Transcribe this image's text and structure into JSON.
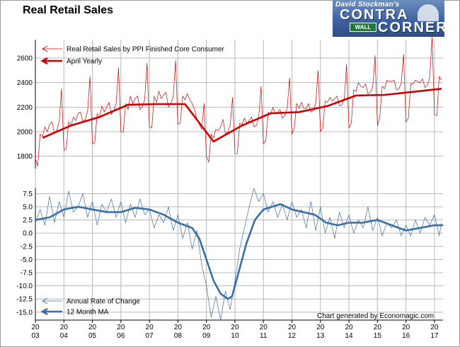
{
  "chart": {
    "title": "Real Retail Sales",
    "credit": "Chart generated by Economagic.com"
  },
  "logo": {
    "tagline": "David Stockman's",
    "word1": "CONTRA",
    "word2": "CORNER",
    "sign": "WALL"
  },
  "colors": {
    "top_series": "#cc0000",
    "bottom_series": "#3a6ea5",
    "grid": "#b8b8b8",
    "axis": "#000000"
  },
  "x_axis": {
    "top": [
      "20",
      "20",
      "20",
      "20",
      "20",
      "20",
      "20",
      "20",
      "20",
      "20",
      "20",
      "20",
      "20",
      "20",
      "20"
    ],
    "bottom": [
      "03",
      "04",
      "05",
      "06",
      "07",
      "08",
      "09",
      "10",
      "11",
      "12",
      "13",
      "14",
      "15",
      "16",
      "17"
    ]
  },
  "chart_data": [
    {
      "type": "line",
      "title": "",
      "ylim": [
        1700,
        2750
      ],
      "yticks": [
        1800,
        2000,
        2200,
        2400,
        2600
      ],
      "xlim": [
        2003.0,
        2017.3
      ],
      "series": [
        {
          "name": "Real Retail Sales by PPI Finished Core Consumer",
          "style": "thin",
          "x": [
            2003.0,
            2003.083,
            2003.167,
            2003.25,
            2003.333,
            2003.417,
            2003.5,
            2003.583,
            2003.667,
            2003.75,
            2003.833,
            2003.917,
            2004.0,
            2004.083,
            2004.167,
            2004.25,
            2004.333,
            2004.417,
            2004.5,
            2004.583,
            2004.667,
            2004.75,
            2004.833,
            2004.917,
            2005.0,
            2005.083,
            2005.167,
            2005.25,
            2005.333,
            2005.417,
            2005.5,
            2005.583,
            2005.667,
            2005.75,
            2005.833,
            2005.917,
            2006.0,
            2006.083,
            2006.167,
            2006.25,
            2006.333,
            2006.417,
            2006.5,
            2006.583,
            2006.667,
            2006.75,
            2006.833,
            2006.917,
            2007.0,
            2007.083,
            2007.167,
            2007.25,
            2007.333,
            2007.417,
            2007.5,
            2007.583,
            2007.667,
            2007.75,
            2007.833,
            2007.917,
            2008.0,
            2008.083,
            2008.167,
            2008.25,
            2008.333,
            2008.417,
            2008.5,
            2008.583,
            2008.667,
            2008.75,
            2008.833,
            2008.917,
            2009.0,
            2009.083,
            2009.167,
            2009.25,
            2009.333,
            2009.417,
            2009.5,
            2009.583,
            2009.667,
            2009.75,
            2009.833,
            2009.917,
            2010.0,
            2010.083,
            2010.167,
            2010.25,
            2010.333,
            2010.417,
            2010.5,
            2010.583,
            2010.667,
            2010.75,
            2010.833,
            2010.917,
            2011.0,
            2011.083,
            2011.167,
            2011.25,
            2011.333,
            2011.417,
            2011.5,
            2011.583,
            2011.667,
            2011.75,
            2011.833,
            2011.917,
            2012.0,
            2012.083,
            2012.167,
            2012.25,
            2012.333,
            2012.417,
            2012.5,
            2012.583,
            2012.667,
            2012.75,
            2012.833,
            2012.917,
            2013.0,
            2013.083,
            2013.167,
            2013.25,
            2013.333,
            2013.417,
            2013.5,
            2013.583,
            2013.667,
            2013.75,
            2013.833,
            2013.917,
            2014.0,
            2014.083,
            2014.167,
            2014.25,
            2014.333,
            2014.417,
            2014.5,
            2014.583,
            2014.667,
            2014.75,
            2014.833,
            2014.917,
            2015.0,
            2015.083,
            2015.167,
            2015.25,
            2015.333,
            2015.417,
            2015.5,
            2015.583,
            2015.667,
            2015.75,
            2015.833,
            2015.917,
            2016.0,
            2016.083,
            2016.167,
            2016.25,
            2016.333,
            2016.417,
            2016.5,
            2016.583,
            2016.667,
            2016.75,
            2016.833,
            2016.917,
            2017.0,
            2017.083,
            2017.167,
            2017.25
          ],
          "values": [
            1780,
            1720,
            1980,
            1960,
            2040,
            2000,
            2060,
            2080,
            1990,
            2010,
            2080,
            2350,
            1850,
            1860,
            2080,
            2050,
            2120,
            2090,
            2150,
            2160,
            2080,
            2100,
            2170,
            2450,
            1900,
            1910,
            2150,
            2110,
            2210,
            2160,
            2200,
            2240,
            2140,
            2170,
            2230,
            2520,
            2000,
            2000,
            2230,
            2180,
            2290,
            2230,
            2270,
            2290,
            2180,
            2200,
            2260,
            2560,
            2040,
            2030,
            2290,
            2240,
            2330,
            2270,
            2300,
            2320,
            2200,
            2230,
            2280,
            2580,
            2060,
            2070,
            2290,
            2260,
            2310,
            2260,
            2230,
            2180,
            2100,
            2060,
            2020,
            2230,
            1800,
            1750,
            1980,
            1950,
            2020,
            2010,
            2040,
            2100,
            1980,
            2000,
            2050,
            2280,
            1820,
            1820,
            2070,
            2060,
            2110,
            2070,
            2090,
            2120,
            2040,
            2050,
            2110,
            2370,
            1900,
            1930,
            2160,
            2140,
            2200,
            2150,
            2160,
            2180,
            2110,
            2130,
            2190,
            2440,
            1980,
            2030,
            2230,
            2190,
            2240,
            2190,
            2190,
            2230,
            2160,
            2170,
            2230,
            2500,
            2000,
            2030,
            2250,
            2240,
            2280,
            2250,
            2270,
            2290,
            2210,
            2220,
            2260,
            2550,
            2030,
            2070,
            2340,
            2330,
            2400,
            2370,
            2360,
            2390,
            2310,
            2320,
            2360,
            2620,
            2050,
            2120,
            2370,
            2350,
            2420,
            2410,
            2410,
            2420,
            2340,
            2350,
            2390,
            2630,
            2080,
            2110,
            2390,
            2390,
            2420,
            2410,
            2400,
            2430,
            2360,
            2380,
            2440,
            2770,
            2140,
            2130,
            2450,
            2420
          ]
        },
        {
          "name": "April Yearly",
          "style": "thick",
          "x": [
            2003.25,
            2004.25,
            2005.25,
            2006.25,
            2007.25,
            2008.25,
            2009.25,
            2010.25,
            2011.25,
            2012.25,
            2013.25,
            2014.25,
            2015.25,
            2016.25,
            2017.25
          ],
          "values": [
            1950,
            2050,
            2120,
            2220,
            2225,
            2225,
            1920,
            2050,
            2150,
            2160,
            2210,
            2295,
            2300,
            2325,
            2350
          ]
        }
      ]
    },
    {
      "type": "line",
      "title": "",
      "ylim": [
        -16.5,
        8.5
      ],
      "yticks": [
        7.5,
        5.0,
        2.5,
        0.0,
        -2.5,
        -5.0,
        -7.5,
        -10.0,
        -12.5,
        -15.0
      ],
      "ytick_labels": [
        "7.5",
        "5.0",
        "2.5",
        "0.0",
        "-2.5",
        "-5.0",
        "-7.5",
        "-10.0",
        "-12.5",
        "-15.0"
      ],
      "xlim": [
        2003.0,
        2017.3
      ],
      "series": [
        {
          "name": "Annual Rate of Change",
          "style": "thin",
          "x": [
            2003.0,
            2003.167,
            2003.333,
            2003.5,
            2003.667,
            2003.833,
            2004.0,
            2004.167,
            2004.333,
            2004.5,
            2004.667,
            2004.833,
            2005.0,
            2005.167,
            2005.333,
            2005.5,
            2005.667,
            2005.833,
            2006.0,
            2006.167,
            2006.333,
            2006.5,
            2006.667,
            2006.833,
            2007.0,
            2007.167,
            2007.333,
            2007.5,
            2007.667,
            2007.833,
            2008.0,
            2008.167,
            2008.333,
            2008.5,
            2008.667,
            2008.833,
            2009.0,
            2009.167,
            2009.333,
            2009.5,
            2009.667,
            2009.833,
            2010.0,
            2010.167,
            2010.333,
            2010.5,
            2010.667,
            2010.833,
            2011.0,
            2011.167,
            2011.333,
            2011.5,
            2011.667,
            2011.833,
            2012.0,
            2012.167,
            2012.333,
            2012.5,
            2012.667,
            2012.833,
            2013.0,
            2013.167,
            2013.333,
            2013.5,
            2013.667,
            2013.833,
            2014.0,
            2014.167,
            2014.333,
            2014.5,
            2014.667,
            2014.833,
            2015.0,
            2015.167,
            2015.333,
            2015.5,
            2015.667,
            2015.833,
            2016.0,
            2016.167,
            2016.333,
            2016.5,
            2016.667,
            2016.833,
            2017.0,
            2017.167,
            2017.25
          ],
          "values": [
            2.0,
            4.5,
            1.5,
            7.0,
            2.0,
            6.0,
            3.0,
            8.0,
            4.0,
            5.0,
            7.5,
            3.0,
            6.0,
            1.5,
            5.5,
            4.0,
            6.5,
            3.0,
            6.0,
            2.0,
            5.5,
            3.0,
            6.5,
            3.5,
            4.5,
            1.0,
            3.5,
            2.0,
            5.0,
            0.5,
            3.5,
            -1.0,
            2.0,
            -3.0,
            0.5,
            -6.0,
            -10.0,
            -16.0,
            -12.0,
            -16.5,
            -11.0,
            -14.5,
            -9.0,
            -3.0,
            1.0,
            5.0,
            8.5,
            6.0,
            7.5,
            4.0,
            6.0,
            3.0,
            5.5,
            2.5,
            6.0,
            3.0,
            4.5,
            1.0,
            6.0,
            0.5,
            5.0,
            0.0,
            3.0,
            -1.0,
            4.0,
            1.0,
            3.5,
            0.0,
            2.5,
            1.0,
            5.0,
            0.5,
            3.0,
            -0.5,
            2.0,
            1.0,
            2.5,
            -0.5,
            1.5,
            -0.5,
            2.5,
            0.0,
            3.0,
            1.5,
            3.5,
            -0.5,
            2.0
          ]
        },
        {
          "name": "12 Month MA",
          "style": "thick",
          "x": [
            2003.0,
            2003.5,
            2004.0,
            2004.5,
            2005.0,
            2005.5,
            2006.0,
            2006.5,
            2007.0,
            2007.5,
            2008.0,
            2008.25,
            2008.5,
            2008.75,
            2009.0,
            2009.25,
            2009.5,
            2009.75,
            2009.9,
            2010.1,
            2010.4,
            2010.7,
            2011.0,
            2011.3,
            2011.6,
            2012.0,
            2012.4,
            2012.8,
            2013.2,
            2013.6,
            2014.0,
            2014.5,
            2015.0,
            2015.5,
            2016.0,
            2016.5,
            2017.0,
            2017.3
          ],
          "values": [
            2.5,
            3.0,
            4.5,
            5.0,
            4.5,
            4.0,
            4.0,
            4.8,
            4.5,
            3.5,
            2.0,
            1.5,
            1.0,
            -1.0,
            -5.0,
            -9.0,
            -11.5,
            -12.5,
            -12.0,
            -8.0,
            -2.0,
            2.5,
            4.5,
            5.0,
            5.5,
            4.5,
            4.0,
            3.5,
            2.0,
            1.5,
            2.0,
            2.0,
            2.5,
            1.5,
            0.5,
            1.0,
            1.5,
            1.5
          ]
        }
      ]
    }
  ]
}
